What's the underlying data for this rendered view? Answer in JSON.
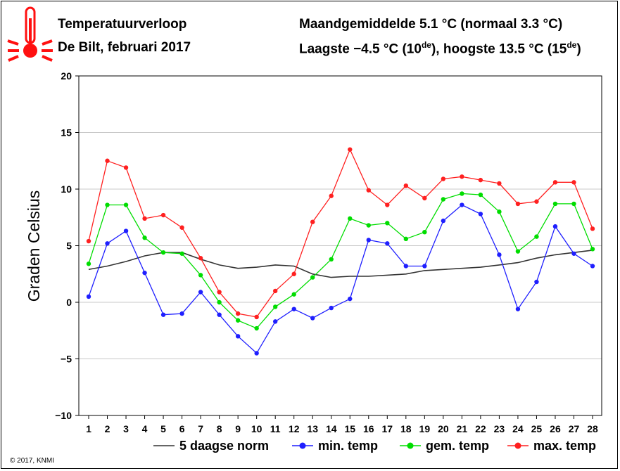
{
  "header": {
    "title": "Temperatuurverloop",
    "subtitle": "De Bilt, februari 2017",
    "month_avg": "Maandgemiddelde 5.1 °C (normaal 3.3 °C)",
    "extremes_pre": "Laagste −4.5 °C (10",
    "extremes_sup1": "de",
    "extremes_mid": "), hoogste 13.5 °C (15",
    "extremes_sup2": "de",
    "extremes_post": ")"
  },
  "copyright": "© 2017, KNMI",
  "colors": {
    "norm": "#333333",
    "min": "#1f1fff",
    "gem": "#00dd00",
    "max": "#ff2020",
    "grid": "#c8c8c8",
    "thermometer": "#ff1010"
  },
  "chart_data": {
    "type": "line",
    "title": "Temperatuurverloop",
    "subtitle": "De Bilt, februari 2017",
    "ylabel": "Graden Celsius",
    "xlabel": "",
    "ylim": [
      -10,
      20
    ],
    "yticks": [
      "−10",
      "−5",
      "0",
      "5",
      "10",
      "15",
      "20"
    ],
    "ytick_values": [
      -10,
      -5,
      0,
      5,
      10,
      15,
      20
    ],
    "x": [
      1,
      2,
      3,
      4,
      5,
      6,
      7,
      8,
      9,
      10,
      11,
      12,
      13,
      14,
      15,
      16,
      17,
      18,
      19,
      20,
      21,
      22,
      23,
      24,
      25,
      26,
      27,
      28
    ],
    "xticks": [
      "1",
      "2",
      "3",
      "4",
      "5",
      "6",
      "7",
      "8",
      "9",
      "10",
      "11",
      "12",
      "13",
      "14",
      "15",
      "16",
      "17",
      "18",
      "19",
      "20",
      "21",
      "22",
      "23",
      "24",
      "25",
      "26",
      "27",
      "28"
    ],
    "grid": true,
    "legend_position": "bottom",
    "series": [
      {
        "name": "5 daagse norm",
        "key": "norm",
        "markers": false,
        "values": [
          2.9,
          3.2,
          3.6,
          4.1,
          4.4,
          4.4,
          3.8,
          3.3,
          3.0,
          3.1,
          3.3,
          3.2,
          2.5,
          2.2,
          2.3,
          2.3,
          2.4,
          2.5,
          2.8,
          2.9,
          3.0,
          3.1,
          3.3,
          3.5,
          3.9,
          4.2,
          4.4,
          4.6
        ]
      },
      {
        "name": "min. temp",
        "key": "min",
        "markers": true,
        "values": [
          0.5,
          5.2,
          6.3,
          2.6,
          -1.1,
          -1.0,
          0.9,
          -1.1,
          -3.0,
          -4.5,
          -1.7,
          -0.6,
          -1.4,
          -0.5,
          0.3,
          5.5,
          5.2,
          3.2,
          3.2,
          7.2,
          8.6,
          7.8,
          4.2,
          -0.6,
          1.8,
          6.7,
          4.3,
          3.2
        ]
      },
      {
        "name": "gem. temp",
        "key": "gem",
        "markers": true,
        "values": [
          3.4,
          8.6,
          8.6,
          5.7,
          4.4,
          4.3,
          2.4,
          0.0,
          -1.6,
          -2.3,
          -0.4,
          0.7,
          2.2,
          3.8,
          7.4,
          6.8,
          7.0,
          5.6,
          6.2,
          9.1,
          9.6,
          9.5,
          8.0,
          4.5,
          5.8,
          8.7,
          8.7,
          4.7
        ]
      },
      {
        "name": "max. temp",
        "key": "max",
        "markers": true,
        "values": [
          5.4,
          12.5,
          11.9,
          7.4,
          7.7,
          6.6,
          3.9,
          0.9,
          -1.0,
          -1.3,
          1.0,
          2.5,
          7.1,
          9.4,
          13.5,
          9.9,
          8.6,
          10.3,
          9.2,
          10.9,
          11.1,
          10.8,
          10.5,
          8.7,
          8.9,
          10.6,
          10.6,
          6.5
        ]
      }
    ]
  }
}
